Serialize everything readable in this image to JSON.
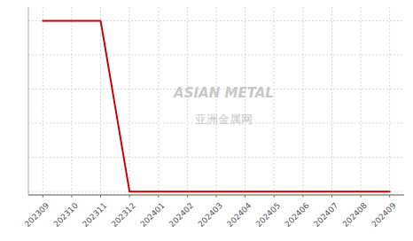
{
  "chart_data": {
    "type": "line",
    "categories": [
      "202309",
      "202310",
      "202311",
      "202312",
      "202401",
      "202402",
      "202403",
      "202404",
      "202405",
      "202406",
      "202407",
      "202408",
      "202409"
    ],
    "values": [
      1,
      1,
      1,
      0,
      0,
      0,
      0,
      0,
      0,
      0,
      0,
      0,
      0
    ],
    "color": "#cc0000",
    "ylim": [
      -0.02,
      1.08
    ],
    "yticks": [
      0,
      0.2,
      0.4,
      0.6,
      0.8,
      1
    ],
    "grid": true,
    "tick_labels": "x",
    "annotations": [
      "ASIAN  METAL",
      "亚洲金属网"
    ]
  }
}
